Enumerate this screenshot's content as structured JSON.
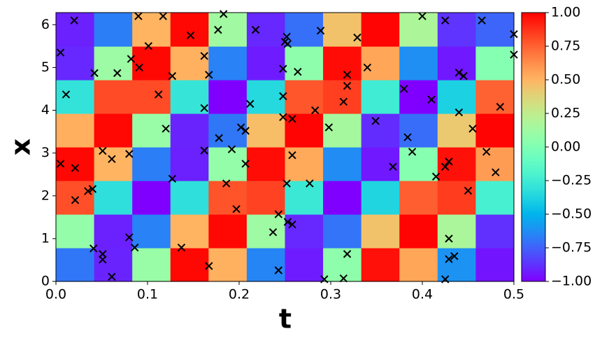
{
  "chart_data": {
    "type": "heatmap",
    "colormap": "rainbow",
    "xlabel": "t",
    "ylabel": "x",
    "xlim": [
      0,
      0.5
    ],
    "ylim": [
      0,
      6.283
    ],
    "xticks": [
      {
        "value": 0,
        "label": "0.0"
      },
      0.1,
      0.2,
      0.3,
      0.4,
      0.5
    ],
    "yticks": [
      0,
      1,
      2,
      3,
      4,
      5,
      6
    ],
    "zlim": [
      -1,
      1
    ],
    "zticks": [
      {
        "value": -1,
        "label": "−1.00"
      },
      {
        "value": -0.75,
        "label": "−0.75"
      },
      {
        "value": -0.5,
        "label": "−0.50"
      },
      {
        "value": -0.25,
        "label": "−0.25"
      },
      {
        "value": 0,
        "label": "0.00"
      },
      {
        "value": 0.25,
        "label": "0.25"
      },
      {
        "value": 0.5,
        "label": "0.50"
      },
      {
        "value": 0.75,
        "label": "0.75"
      },
      {
        "value": 1,
        "label": "1.00"
      }
    ],
    "z": [
      [
        -0.69,
        -0.91,
        0.1,
        0.98,
        0.51,
        -0.65,
        -0.93,
        0.06,
        0.96,
        0.55,
        -0.61,
        -0.95
      ],
      [
        0.08,
        -0.92,
        -0.66,
        0.5,
        0.98,
        0.12,
        -0.9,
        -0.7,
        0.45,
        0.99,
        0.17,
        -0.88
      ],
      [
        0.8,
        -0.32,
        -1.0,
        -0.32,
        0.79,
        0.83,
        -0.27,
        -1.0,
        -0.37,
        0.76,
        0.85,
        -0.22
      ],
      [
        0.98,
        0.5,
        -0.67,
        -0.92,
        0.08,
        0.97,
        0.54,
        -0.63,
        -0.94,
        0.03,
        0.96,
        0.58
      ],
      [
        0.52,
        0.98,
        0.1,
        -0.91,
        -0.69,
        0.47,
        0.99,
        0.15,
        -0.89,
        -0.72,
        0.42,
        0.99
      ],
      [
        -0.3,
        0.81,
        0.81,
        -0.29,
        -1.0,
        -0.35,
        0.78,
        0.84,
        -0.25,
        -1.0,
        -0.39,
        0.75
      ],
      [
        -0.9,
        0.11,
        0.98,
        0.51,
        -0.66,
        -0.93,
        0.06,
        0.97,
        0.55,
        -0.62,
        -0.94,
        0.02
      ],
      [
        -0.92,
        -0.67,
        0.5,
        0.98,
        0.13,
        -0.9,
        -0.71,
        0.45,
        0.99,
        0.18,
        -0.87,
        -0.74
      ]
    ],
    "series": [
      {
        "marker": "x",
        "color": "#000000",
        "x": [
          0.02,
          0.09,
          0.117,
          0.183,
          0.4,
          0.425,
          0.465,
          0.005,
          0.147,
          0.177,
          0.218,
          0.289,
          0.252,
          0.25,
          0.253,
          0.329,
          0.5,
          0.5,
          0.101,
          0.082,
          0.162,
          0.091,
          0.248,
          0.34,
          0.264,
          0.042,
          0.067,
          0.127,
          0.167,
          0.318,
          0.318,
          0.44,
          0.445,
          0.011,
          0.112,
          0.248,
          0.41,
          0.38,
          0.314,
          0.212,
          0.162,
          0.485,
          0.283,
          0.44,
          0.248,
          0.258,
          0.349,
          0.12,
          0.202,
          0.298,
          0.207,
          0.455,
          0.178,
          0.384,
          0.051,
          0.08,
          0.061,
          0.162,
          0.192,
          0.258,
          0.389,
          0.47,
          0.005,
          0.207,
          0.368,
          0.429,
          0.425,
          0.021,
          0.48,
          0.127,
          0.415,
          0.186,
          0.252,
          0.277,
          0.04,
          0.035,
          0.45,
          0.021,
          0.197,
          0.243,
          0.253,
          0.258,
          0.237,
          0.08,
          0.429,
          0.086,
          0.137,
          0.041,
          0.051,
          0.051,
          0.318,
          0.435,
          0.429,
          0.167,
          0.243,
          0.061,
          0.293,
          0.314,
          0.425
        ],
        "y": [
          6.1,
          6.2,
          6.2,
          6.25,
          6.2,
          6.1,
          6.1,
          5.35,
          5.75,
          5.88,
          5.88,
          5.86,
          5.72,
          5.6,
          5.55,
          5.7,
          5.78,
          5.3,
          5.5,
          5.2,
          5.27,
          5.0,
          4.97,
          5.0,
          4.9,
          4.87,
          4.87,
          4.8,
          4.83,
          4.83,
          4.57,
          4.88,
          4.8,
          4.37,
          4.37,
          4.33,
          4.25,
          4.5,
          4.2,
          4.15,
          4.05,
          4.08,
          4.0,
          3.95,
          3.84,
          3.8,
          3.75,
          3.57,
          3.6,
          3.6,
          3.52,
          3.57,
          3.35,
          3.37,
          3.05,
          2.98,
          2.86,
          3.06,
          3.09,
          2.95,
          3.03,
          3.03,
          2.75,
          2.75,
          2.68,
          2.8,
          2.68,
          2.65,
          2.55,
          2.4,
          2.45,
          2.29,
          2.29,
          2.29,
          2.16,
          2.11,
          2.12,
          1.9,
          1.69,
          1.57,
          1.39,
          1.33,
          1.15,
          1.03,
          1.0,
          0.79,
          0.79,
          0.77,
          0.64,
          0.51,
          0.64,
          0.59,
          0.52,
          0.36,
          0.26,
          0.11,
          0.05,
          0.07,
          0.05
        ]
      }
    ]
  }
}
